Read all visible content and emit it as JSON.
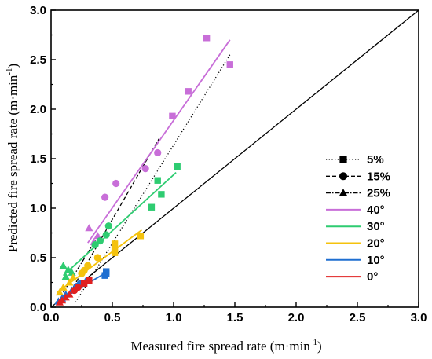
{
  "chart_data": {
    "type": "scatter",
    "xlabel": "Measured fire spread rate (m·min",
    "xlabel_sup": "-1",
    "xlabel_end": ")",
    "ylabel": "Predicted fire spread rate (m·min",
    "ylabel_sup": "-1",
    "ylabel_end": ")",
    "xlim": [
      0,
      3.0
    ],
    "ylim": [
      0,
      3.0
    ],
    "xticks": [
      "0.0",
      "0.5",
      "1.0",
      "1.5",
      "2.0",
      "2.5",
      "3.0"
    ],
    "yticks": [
      "0.0",
      "0.5",
      "1.0",
      "1.5",
      "2.0",
      "2.5",
      "3.0"
    ],
    "grid": false,
    "legend_position": "right",
    "reference_line": {
      "x": [
        0,
        3
      ],
      "y": [
        0,
        3
      ],
      "color": "#000000"
    },
    "marker_legend": [
      {
        "name": "5%",
        "marker": "square",
        "dash": "1.2,2.5"
      },
      {
        "name": "15%",
        "marker": "circle",
        "dash": "5,3"
      },
      {
        "name": "25%",
        "marker": "triangle",
        "dash": "6,2,1.5,2"
      }
    ],
    "series": [
      {
        "name": "40°",
        "color": "#c86ed8",
        "fit": {
          "x": [
            0.3,
            1.46
          ],
          "y": [
            0.65,
            2.7
          ]
        },
        "points": [
          {
            "x": 1.27,
            "y": 2.72,
            "m": "square"
          },
          {
            "x": 1.46,
            "y": 2.45,
            "m": "square"
          },
          {
            "x": 1.12,
            "y": 2.18,
            "m": "square"
          },
          {
            "x": 0.99,
            "y": 1.93,
            "m": "square"
          },
          {
            "x": 0.87,
            "y": 1.56,
            "m": "circle"
          },
          {
            "x": 0.77,
            "y": 1.4,
            "m": "circle"
          },
          {
            "x": 0.53,
            "y": 1.25,
            "m": "circle"
          },
          {
            "x": 0.44,
            "y": 1.11,
            "m": "circle"
          },
          {
            "x": 0.31,
            "y": 0.8,
            "m": "triangle"
          },
          {
            "x": 0.38,
            "y": 0.72,
            "m": "triangle"
          },
          {
            "x": 0.35,
            "y": 0.66,
            "m": "triangle"
          }
        ]
      },
      {
        "name": "30°",
        "color": "#2ecc71",
        "fit": {
          "x": [
            0.1,
            1.02
          ],
          "y": [
            0.32,
            1.36
          ]
        },
        "points": [
          {
            "x": 1.03,
            "y": 1.42,
            "m": "square"
          },
          {
            "x": 0.87,
            "y": 1.28,
            "m": "square"
          },
          {
            "x": 0.9,
            "y": 1.14,
            "m": "square"
          },
          {
            "x": 0.82,
            "y": 1.01,
            "m": "square"
          },
          {
            "x": 0.47,
            "y": 0.82,
            "m": "circle"
          },
          {
            "x": 0.45,
            "y": 0.73,
            "m": "circle"
          },
          {
            "x": 0.4,
            "y": 0.67,
            "m": "circle"
          },
          {
            "x": 0.36,
            "y": 0.63,
            "m": "circle"
          },
          {
            "x": 0.1,
            "y": 0.42,
            "m": "triangle"
          },
          {
            "x": 0.14,
            "y": 0.38,
            "m": "triangle"
          },
          {
            "x": 0.17,
            "y": 0.35,
            "m": "triangle"
          },
          {
            "x": 0.12,
            "y": 0.31,
            "m": "triangle"
          }
        ]
      },
      {
        "name": "20°",
        "color": "#f4c20d",
        "fit": {
          "x": [
            0.05,
            0.74
          ],
          "y": [
            0.15,
            0.78
          ]
        },
        "points": [
          {
            "x": 0.73,
            "y": 0.72,
            "m": "square"
          },
          {
            "x": 0.52,
            "y": 0.64,
            "m": "square"
          },
          {
            "x": 0.52,
            "y": 0.59,
            "m": "square"
          },
          {
            "x": 0.52,
            "y": 0.55,
            "m": "square"
          },
          {
            "x": 0.38,
            "y": 0.5,
            "m": "circle"
          },
          {
            "x": 0.3,
            "y": 0.42,
            "m": "circle"
          },
          {
            "x": 0.27,
            "y": 0.37,
            "m": "circle"
          },
          {
            "x": 0.25,
            "y": 0.34,
            "m": "circle"
          },
          {
            "x": 0.18,
            "y": 0.3,
            "m": "triangle"
          },
          {
            "x": 0.15,
            "y": 0.25,
            "m": "triangle"
          },
          {
            "x": 0.1,
            "y": 0.2,
            "m": "triangle"
          },
          {
            "x": 0.07,
            "y": 0.15,
            "m": "triangle"
          }
        ]
      },
      {
        "name": "10°",
        "color": "#1f6fd1",
        "fit": {
          "x": [
            0.04,
            0.45
          ],
          "y": [
            0.05,
            0.35
          ]
        },
        "points": [
          {
            "x": 0.45,
            "y": 0.36,
            "m": "square"
          },
          {
            "x": 0.45,
            "y": 0.34,
            "m": "square"
          },
          {
            "x": 0.44,
            "y": 0.32,
            "m": "square"
          },
          {
            "x": 0.3,
            "y": 0.27,
            "m": "circle"
          },
          {
            "x": 0.24,
            "y": 0.24,
            "m": "circle"
          },
          {
            "x": 0.21,
            "y": 0.21,
            "m": "circle"
          },
          {
            "x": 0.17,
            "y": 0.17,
            "m": "triangle"
          },
          {
            "x": 0.12,
            "y": 0.13,
            "m": "triangle"
          },
          {
            "x": 0.09,
            "y": 0.09,
            "m": "triangle"
          },
          {
            "x": 0.06,
            "y": 0.06,
            "m": "triangle"
          }
        ]
      },
      {
        "name": "0°",
        "color": "#e02020",
        "fit": {
          "x": [
            0.04,
            0.33
          ],
          "y": [
            0.03,
            0.28
          ]
        },
        "points": [
          {
            "x": 0.31,
            "y": 0.27,
            "m": "square"
          },
          {
            "x": 0.27,
            "y": 0.24,
            "m": "square"
          },
          {
            "x": 0.22,
            "y": 0.2,
            "m": "circle"
          },
          {
            "x": 0.19,
            "y": 0.17,
            "m": "circle"
          },
          {
            "x": 0.15,
            "y": 0.13,
            "m": "triangle"
          },
          {
            "x": 0.12,
            "y": 0.1,
            "m": "triangle"
          },
          {
            "x": 0.09,
            "y": 0.07,
            "m": "triangle"
          },
          {
            "x": 0.07,
            "y": 0.05,
            "m": "triangle"
          }
        ]
      }
    ],
    "group_fits": [
      {
        "name": "5%",
        "dash": "1.2,2.5",
        "x": [
          0.2,
          1.46
        ],
        "y": [
          0.05,
          2.55
        ]
      },
      {
        "name": "15%",
        "dash": "5,3",
        "x": [
          0.18,
          0.88
        ],
        "y": [
          0.2,
          1.7
        ]
      },
      {
        "name": "25%",
        "dash": "6,2,1.5,2",
        "x": [
          0.1,
          0.4
        ],
        "y": [
          0.15,
          0.75
        ]
      }
    ]
  }
}
